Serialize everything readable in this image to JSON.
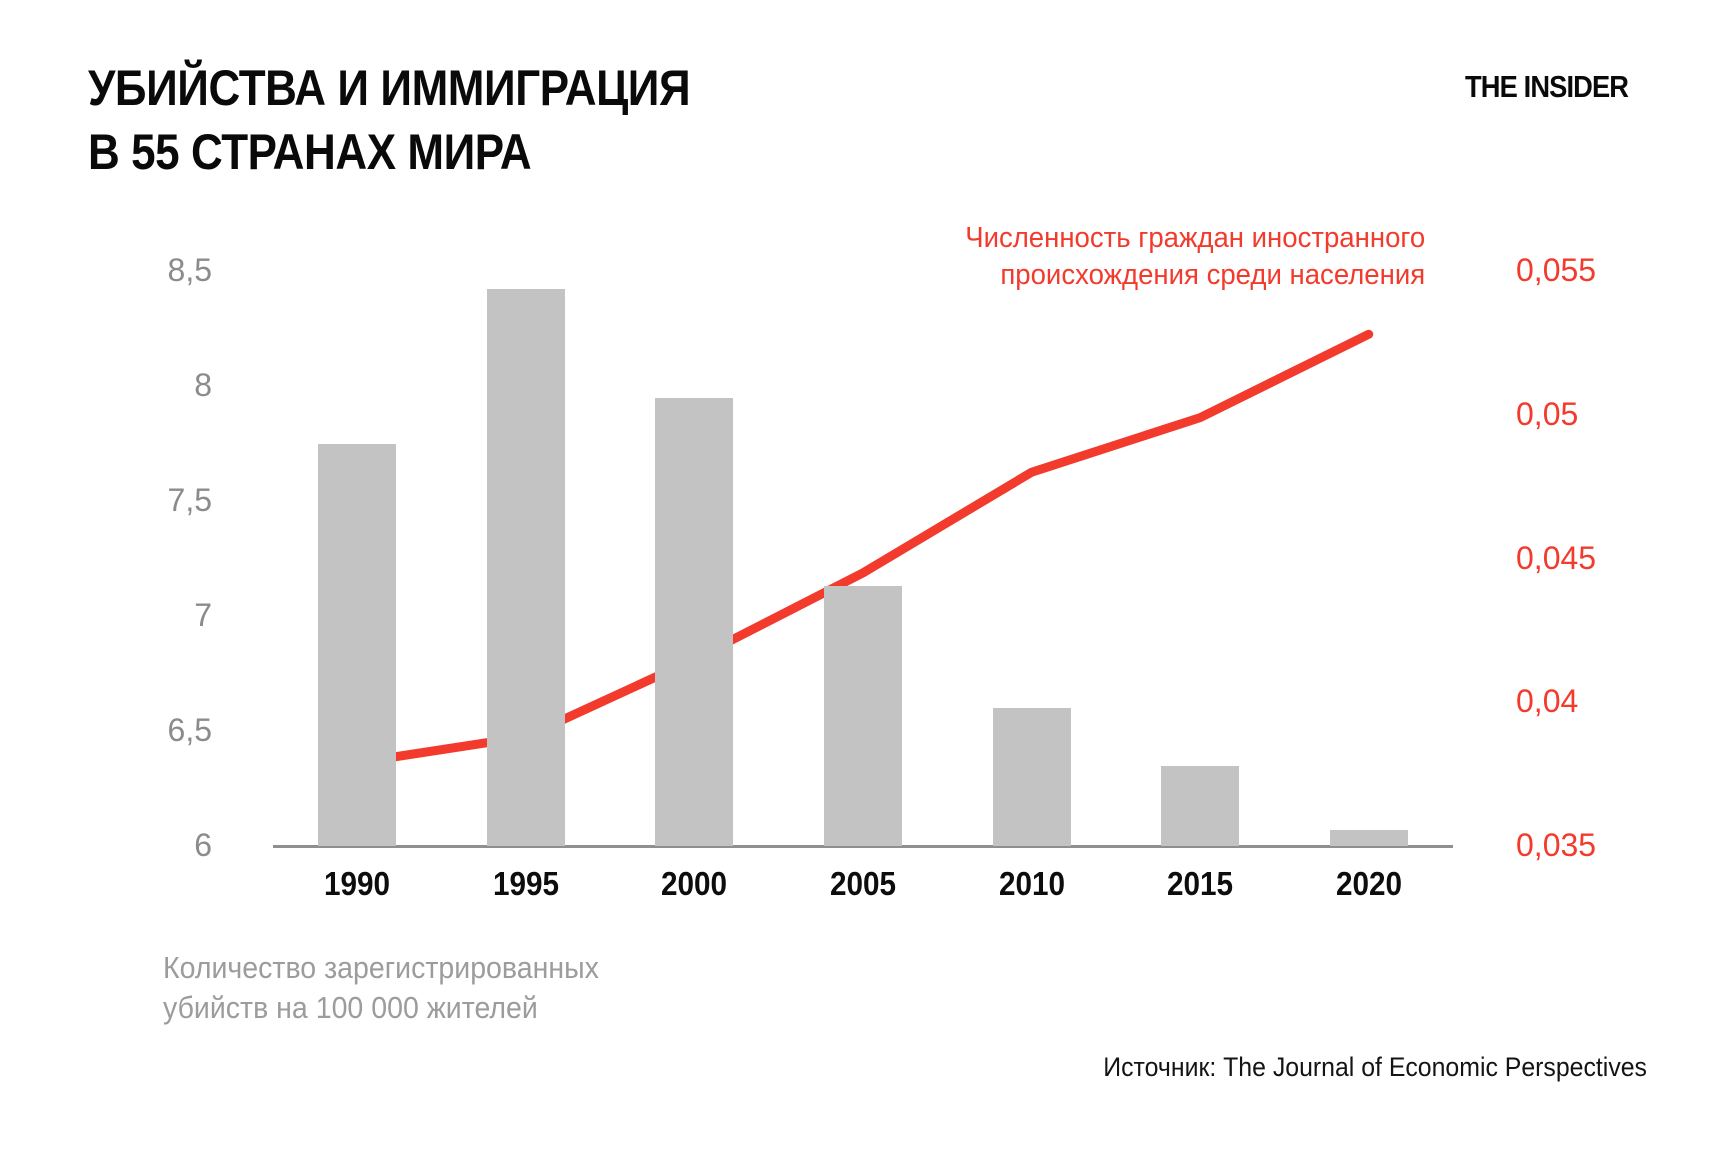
{
  "header": {
    "title_line1": "УБИЙСТВА И ИММИГРАЦИЯ",
    "title_line2": "В 55 СТРАНАХ МИРА",
    "brand": "THE INSIDER"
  },
  "legend": {
    "line1": "Численность граждан иностранного",
    "line2": "происхождения среди населения"
  },
  "footnote": {
    "bars_label_line1": "Количество зарегистрированных",
    "bars_label_line2": "убийств на 100 000 жителей",
    "source": "Источник: The Journal of Economic Perspectives"
  },
  "colors": {
    "bar": "#c3c3c3",
    "line": "#f23b2c",
    "left_axis_text": "#8b8b8b",
    "right_axis_text": "#f23b2c",
    "axis_line": "#8f8f8f",
    "note_text": "#9c9c9c",
    "title_text": "#0a0a0a"
  },
  "chart_data": {
    "type": "bar+line",
    "categories": [
      "1990",
      "1995",
      "2000",
      "2005",
      "2010",
      "2015",
      "2020"
    ],
    "series": [
      {
        "name": "Количество зарегистрированных убийств на 100 000 жителей",
        "type": "bar",
        "axis": "left",
        "values": [
          7.75,
          8.42,
          7.95,
          7.13,
          6.6,
          6.35,
          6.07
        ]
      },
      {
        "name": "Численность граждан иностранного происхождения среди населения",
        "type": "line",
        "axis": "right",
        "values": [
          0.0379,
          0.0388,
          0.0415,
          0.0445,
          0.048,
          0.0499,
          0.0528
        ]
      }
    ],
    "left_axis": {
      "min": 6,
      "max": 8.5,
      "ticks": [
        "8,5",
        "8",
        "7,5",
        "7",
        "6,5",
        "6"
      ],
      "tick_values": [
        8.5,
        8,
        7.5,
        7,
        6.5,
        6
      ]
    },
    "right_axis": {
      "min": 0.035,
      "max": 0.055,
      "ticks": [
        "0,055",
        "0,05",
        "0,045",
        "0,04",
        "0,035"
      ],
      "tick_values": [
        0.055,
        0.05,
        0.045,
        0.04,
        0.035
      ]
    },
    "grid": false,
    "legend_position": "top-right"
  }
}
